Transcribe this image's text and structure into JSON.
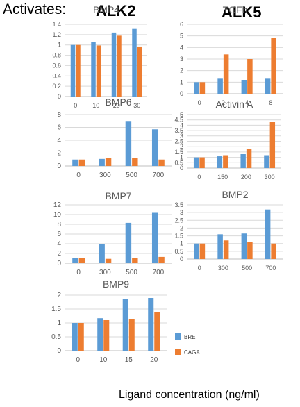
{
  "header": {
    "activates": "Activates:",
    "alk2": "ALK2",
    "alk5": "ALK5"
  },
  "x_axis_label": "Ligand concentration (ng/ml)",
  "colors": {
    "BRE": "#5b9bd5",
    "CAGA": "#ed7d31",
    "grid": "#d9d9d9",
    "tick": "#595959"
  },
  "legend": [
    {
      "name": "BRE",
      "color": "#5b9bd5"
    },
    {
      "name": "CAGA",
      "color": "#ed7d31"
    }
  ],
  "chart_data": [
    {
      "type": "bar",
      "title": "BMP4",
      "categories": [
        "0",
        "10",
        "20",
        "30"
      ],
      "ylim": [
        0,
        1.4
      ],
      "yticks": [
        "0",
        "0.2",
        "0.4",
        "0.6",
        "0.8",
        "1",
        "1.2",
        "1.4"
      ],
      "series": [
        {
          "name": "BRE",
          "values": [
            1.0,
            1.06,
            1.24,
            1.31
          ]
        },
        {
          "name": "CAGA",
          "values": [
            1.0,
            0.99,
            1.18,
            0.97
          ]
        }
      ]
    },
    {
      "type": "bar",
      "title": "TGFb",
      "categories": [
        "0",
        "2",
        "4",
        "8"
      ],
      "ylim": [
        0,
        6
      ],
      "yticks": [
        "0",
        "1",
        "2",
        "3",
        "4",
        "5",
        "6"
      ],
      "series": [
        {
          "name": "BRE",
          "values": [
            1.0,
            1.3,
            1.2,
            1.3
          ]
        },
        {
          "name": "CAGA",
          "values": [
            1.0,
            3.4,
            3.0,
            4.8
          ]
        }
      ]
    },
    {
      "type": "bar",
      "title": "BMP6",
      "categories": [
        "0",
        "300",
        "500",
        "700"
      ],
      "ylim": [
        0,
        8
      ],
      "yticks": [
        "0",
        "2",
        "4",
        "6",
        "8"
      ],
      "series": [
        {
          "name": "BRE",
          "values": [
            1.0,
            1.1,
            7.0,
            5.7
          ]
        },
        {
          "name": "CAGA",
          "values": [
            1.0,
            1.2,
            1.2,
            1.0
          ]
        }
      ]
    },
    {
      "type": "bar",
      "title": "Activin A",
      "categories": [
        "0",
        "150",
        "200",
        "300"
      ],
      "ylim": [
        0,
        5
      ],
      "yticks": [
        "0",
        "0.5",
        "1",
        "1.5",
        "2",
        "2.5",
        "3",
        "3.5",
        "4",
        "4.5",
        "5"
      ],
      "series": [
        {
          "name": "BRE",
          "values": [
            1.0,
            1.1,
            1.3,
            1.2
          ]
        },
        {
          "name": "CAGA",
          "values": [
            1.0,
            1.2,
            1.8,
            4.35
          ]
        }
      ]
    },
    {
      "type": "bar",
      "title": "BMP7",
      "categories": [
        "0",
        "300",
        "500",
        "700"
      ],
      "ylim": [
        0,
        12
      ],
      "yticks": [
        "0",
        "2",
        "4",
        "6",
        "8",
        "10",
        "12"
      ],
      "series": [
        {
          "name": "BRE",
          "values": [
            1.0,
            4.0,
            8.3,
            10.5
          ]
        },
        {
          "name": "CAGA",
          "values": [
            1.0,
            0.9,
            1.1,
            1.3
          ]
        }
      ]
    },
    {
      "type": "bar",
      "title": "BMP2",
      "categories": [
        "0",
        "300",
        "500",
        "700"
      ],
      "ylim": [
        0,
        3.5
      ],
      "yticks": [
        "0",
        "0.5",
        "1",
        "1.5",
        "2",
        "2.5",
        "3",
        "3.5"
      ],
      "series": [
        {
          "name": "BRE",
          "values": [
            1.0,
            1.6,
            1.65,
            3.2
          ]
        },
        {
          "name": "CAGA",
          "values": [
            1.0,
            1.2,
            1.1,
            1.0
          ]
        }
      ]
    },
    {
      "type": "bar",
      "title": "BMP9",
      "categories": [
        "0",
        "10",
        "15",
        "20"
      ],
      "ylim": [
        0,
        2
      ],
      "yticks": [
        "0",
        "0.5",
        "1",
        "1.5",
        "2"
      ],
      "series": [
        {
          "name": "BRE",
          "values": [
            1.0,
            1.17,
            1.85,
            1.9
          ]
        },
        {
          "name": "CAGA",
          "values": [
            1.0,
            1.1,
            1.15,
            1.4
          ]
        }
      ]
    }
  ]
}
